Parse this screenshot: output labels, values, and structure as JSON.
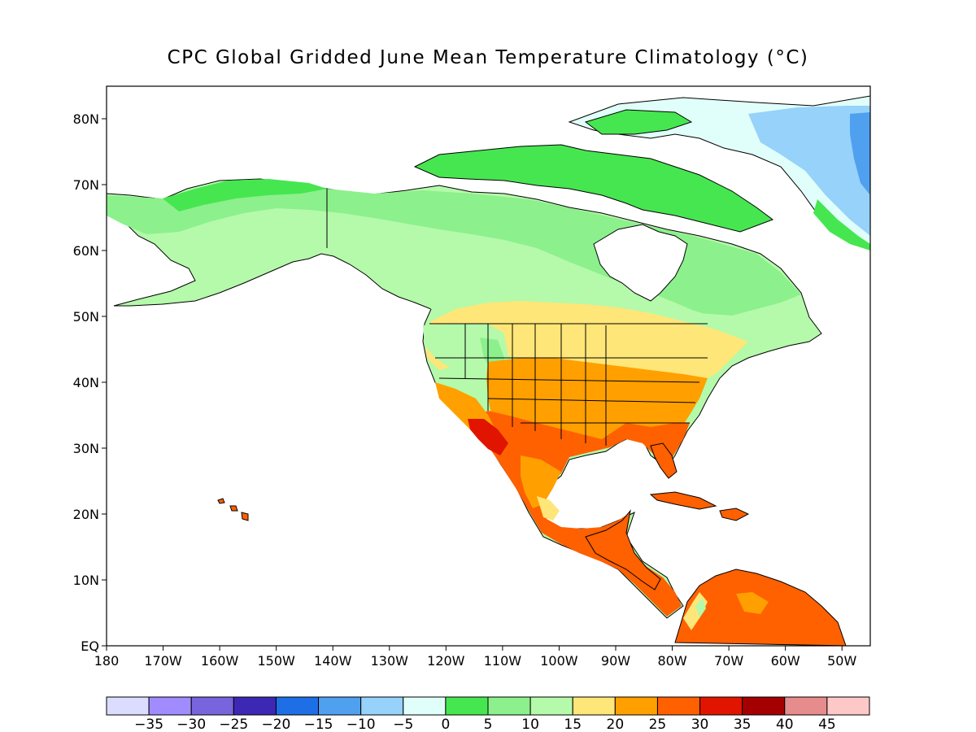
{
  "title": "CPC Global Gridded June Mean Temperature Climatology (°C)",
  "map": {
    "projection": "lat-lon",
    "lon_range": [
      "180",
      "45W"
    ],
    "lat_range": [
      "EQ",
      "85N"
    ],
    "lat_labels": [
      "EQ",
      "10N",
      "20N",
      "30N",
      "40N",
      "50N",
      "60N",
      "70N",
      "80N"
    ],
    "lon_labels": [
      "180",
      "170W",
      "160W",
      "150W",
      "140W",
      "130W",
      "120W",
      "110W",
      "100W",
      "90W",
      "80W",
      "70W",
      "60W",
      "50W"
    ]
  },
  "colorbar": {
    "colors": [
      "#dcdcff",
      "#a08cff",
      "#7864dc",
      "#3c28b4",
      "#1e6ee6",
      "#50a0f0",
      "#96d2fa",
      "#e1fffa",
      "#46e650",
      "#8cf08c",
      "#b4faaa",
      "#ffe678",
      "#ffa000",
      "#ff6000",
      "#e11400",
      "#a50000",
      "#e68c8c",
      "#ffc8c8"
    ],
    "labels": [
      "−35",
      "−30",
      "−25",
      "−20",
      "−15",
      "−10",
      "−5",
      "0",
      "5",
      "10",
      "15",
      "20",
      "25",
      "30",
      "35",
      "40",
      "45"
    ]
  }
}
